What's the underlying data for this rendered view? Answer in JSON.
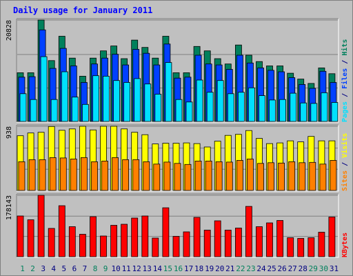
{
  "title": "Daily usage for January 2011",
  "colors": {
    "title": "#0000ff",
    "background": "#c0c0c0",
    "panel_grid": "#808080",
    "hits": "#00805c",
    "files": "#0040ff",
    "pages": "#00e0ff",
    "visits": "#ffff00",
    "sites": "#ff8000",
    "kbytes": "#ff0000",
    "weekday_label": "#000080",
    "weekend_label": "#00805c"
  },
  "chart_data": [
    {
      "type": "bar",
      "name": "hits-files-pages",
      "max_label": "20828",
      "ylim": [
        0,
        20828
      ],
      "label_parts": [
        {
          "text": "Pages",
          "color_key": "pages"
        },
        {
          "text": " / ",
          "color_key": "weekday_label"
        },
        {
          "text": "Files",
          "color_key": "files"
        },
        {
          "text": " / ",
          "color_key": "weekday_label"
        },
        {
          "text": "Hits",
          "color_key": "hits"
        }
      ],
      "x": [
        1,
        2,
        3,
        4,
        5,
        6,
        7,
        8,
        9,
        10,
        11,
        12,
        13,
        14,
        15,
        16,
        17,
        18,
        19,
        20,
        21,
        22,
        23,
        24,
        25,
        26,
        27,
        28,
        29,
        30,
        31
      ],
      "series": [
        {
          "name": "Hits",
          "color_key": "hits",
          "values": [
            10000,
            10000,
            20828,
            12500,
            17500,
            13000,
            9300,
            13000,
            14500,
            15500,
            12900,
            16700,
            15200,
            13000,
            17500,
            10000,
            10000,
            15400,
            14500,
            12900,
            11800,
            15700,
            13600,
            12300,
            11400,
            11400,
            9900,
            8700,
            7800,
            11000,
            9800
          ]
        },
        {
          "name": "Files",
          "color_key": "files",
          "values": [
            9100,
            9200,
            18800,
            10900,
            15000,
            11400,
            8000,
            11800,
            13000,
            13800,
            11600,
            14800,
            14000,
            11600,
            15900,
            8900,
            9100,
            13600,
            11800,
            11600,
            10700,
            13600,
            12000,
            11000,
            10500,
            10200,
            9000,
            7600,
            6800,
            10300,
            8000
          ]
        },
        {
          "name": "Pages",
          "color_key": "pages",
          "values": [
            5700,
            4500,
            13300,
            4500,
            10200,
            5000,
            3500,
            9400,
            9300,
            8400,
            8000,
            8800,
            7700,
            5600,
            12100,
            4500,
            4000,
            8500,
            6000,
            8400,
            5700,
            6000,
            6900,
            5300,
            4400,
            4500,
            5800,
            3800,
            3700,
            5900,
            3900
          ]
        }
      ]
    },
    {
      "type": "bar",
      "name": "visits-sites",
      "max_label": "938",
      "ylim": [
        0,
        938
      ],
      "label_parts": [
        {
          "text": "Sites",
          "color_key": "sites"
        },
        {
          "text": " / ",
          "color_key": "weekday_label"
        },
        {
          "text": "Visits",
          "color_key": "visits"
        }
      ],
      "x": [
        1,
        2,
        3,
        4,
        5,
        6,
        7,
        8,
        9,
        10,
        11,
        12,
        13,
        14,
        15,
        16,
        17,
        18,
        19,
        20,
        21,
        22,
        23,
        24,
        25,
        26,
        27,
        28,
        29,
        30,
        31
      ],
      "series": [
        {
          "name": "Visits",
          "color_key": "visits",
          "values": [
            800,
            840,
            850,
            935,
            880,
            900,
            938,
            885,
            938,
            938,
            900,
            850,
            815,
            680,
            690,
            690,
            695,
            685,
            635,
            720,
            805,
            820,
            875,
            760,
            685,
            695,
            725,
            710,
            790,
            725,
            725
          ]
        },
        {
          "name": "Sites",
          "color_key": "sites",
          "values": [
            420,
            450,
            450,
            480,
            475,
            460,
            480,
            420,
            430,
            480,
            450,
            450,
            420,
            385,
            415,
            395,
            380,
            430,
            430,
            420,
            415,
            440,
            460,
            395,
            405,
            400,
            420,
            405,
            410,
            385,
            440
          ]
        }
      ]
    },
    {
      "type": "bar",
      "name": "kbytes",
      "max_label": "178143",
      "ylim": [
        0,
        178143
      ],
      "label_parts": [
        {
          "text": "KBytes",
          "color_key": "kbytes"
        }
      ],
      "x": [
        1,
        2,
        3,
        4,
        5,
        6,
        7,
        8,
        9,
        10,
        11,
        12,
        13,
        14,
        15,
        16,
        17,
        18,
        19,
        20,
        21,
        22,
        23,
        24,
        25,
        26,
        27,
        28,
        29,
        30,
        31
      ],
      "series": [
        {
          "name": "KBytes",
          "color_key": "kbytes",
          "values": [
            118000,
            107000,
            178143,
            82000,
            148000,
            87000,
            65000,
            116000,
            60000,
            91000,
            94000,
            112000,
            118000,
            54000,
            142000,
            59000,
            72000,
            114000,
            77000,
            104000,
            77000,
            83000,
            146000,
            87000,
            98000,
            105000,
            55000,
            53000,
            55000,
            71000,
            115000
          ]
        }
      ]
    }
  ],
  "days": [
    {
      "label": "1",
      "weekend": true
    },
    {
      "label": "2",
      "weekend": true
    },
    {
      "label": "3",
      "weekend": false
    },
    {
      "label": "4",
      "weekend": false
    },
    {
      "label": "5",
      "weekend": false
    },
    {
      "label": "6",
      "weekend": false
    },
    {
      "label": "7",
      "weekend": false
    },
    {
      "label": "8",
      "weekend": true
    },
    {
      "label": "9",
      "weekend": true
    },
    {
      "label": "10",
      "weekend": false
    },
    {
      "label": "11",
      "weekend": false
    },
    {
      "label": "12",
      "weekend": false
    },
    {
      "label": "13",
      "weekend": false
    },
    {
      "label": "14",
      "weekend": false
    },
    {
      "label": "15",
      "weekend": true
    },
    {
      "label": "16",
      "weekend": true
    },
    {
      "label": "17",
      "weekend": false
    },
    {
      "label": "18",
      "weekend": false
    },
    {
      "label": "19",
      "weekend": false
    },
    {
      "label": "20",
      "weekend": false
    },
    {
      "label": "21",
      "weekend": false
    },
    {
      "label": "22",
      "weekend": true
    },
    {
      "label": "23",
      "weekend": true
    },
    {
      "label": "24",
      "weekend": false
    },
    {
      "label": "25",
      "weekend": false
    },
    {
      "label": "26",
      "weekend": false
    },
    {
      "label": "27",
      "weekend": false
    },
    {
      "label": "28",
      "weekend": false
    },
    {
      "label": "29",
      "weekend": true
    },
    {
      "label": "30",
      "weekend": true
    },
    {
      "label": "31",
      "weekend": false
    }
  ]
}
